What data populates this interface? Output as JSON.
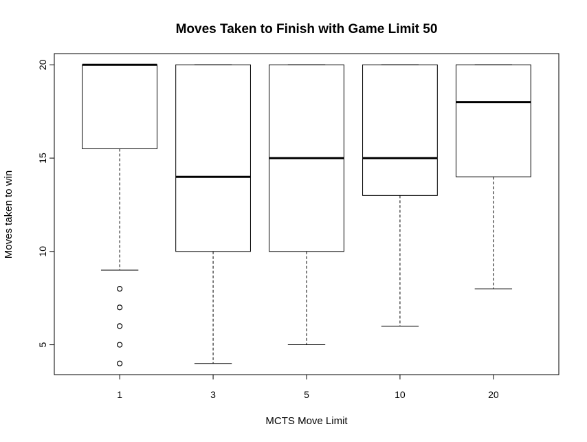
{
  "chart_data": {
    "type": "boxplot",
    "title": "Moves Taken to Finish with Game Limit 50",
    "xlabel": "MCTS Move Limit",
    "ylabel": "Moves taken to win",
    "categories": [
      "1",
      "3",
      "5",
      "10",
      "20"
    ],
    "ylim": [
      3.4,
      20.6
    ],
    "yticks": [
      5,
      10,
      15,
      20
    ],
    "grid": false,
    "legend": "none",
    "boxes": [
      {
        "category": "1",
        "whisker_low": 9,
        "q1": 15.5,
        "median": 20,
        "q3": 20,
        "whisker_high": 20,
        "outliers": [
          8,
          7,
          6,
          5,
          4
        ]
      },
      {
        "category": "3",
        "whisker_low": 4,
        "q1": 10,
        "median": 14,
        "q3": 20,
        "whisker_high": 20,
        "outliers": []
      },
      {
        "category": "5",
        "whisker_low": 5,
        "q1": 10,
        "median": 15,
        "q3": 20,
        "whisker_high": 20,
        "outliers": []
      },
      {
        "category": "10",
        "whisker_low": 6,
        "q1": 13,
        "median": 15,
        "q3": 20,
        "whisker_high": 20,
        "outliers": []
      },
      {
        "category": "20",
        "whisker_low": 8,
        "q1": 14,
        "median": 18,
        "q3": 20,
        "whisker_high": 20,
        "outliers": []
      }
    ]
  }
}
